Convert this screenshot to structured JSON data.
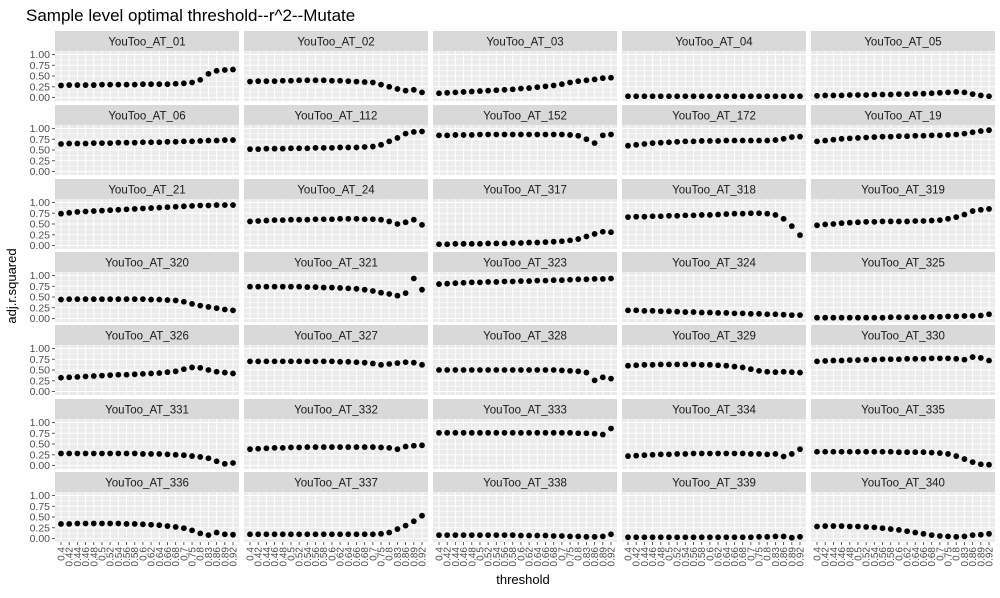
{
  "chart_data": {
    "type": "scatter",
    "title": "Sample level optimal threshold--r^2--Mutate",
    "xlabel": "threshold",
    "ylabel": "adj.r.squared",
    "ylim": [
      -0.08,
      1.08
    ],
    "y_ticks": [
      "0.00",
      "0.25",
      "0.50",
      "0.75",
      "1.00"
    ],
    "x_ticks": [
      "0.4",
      "0.42",
      "0.44",
      "0.46",
      "0.48",
      "0.5",
      "0.52",
      "0.54",
      "0.56",
      "0.58",
      "0.6",
      "0.62",
      "0.64",
      "0.66",
      "0.68",
      "0.7",
      "0.75",
      "0.8",
      "0.83",
      "0.86",
      "0.89",
      "0.92"
    ],
    "facets": [
      {
        "name": "YouToo_AT_01",
        "values": [
          0.28,
          0.29,
          0.29,
          0.29,
          0.29,
          0.3,
          0.3,
          0.3,
          0.3,
          0.3,
          0.31,
          0.31,
          0.31,
          0.31,
          0.32,
          0.33,
          0.35,
          0.41,
          0.55,
          0.62,
          0.64,
          0.65
        ]
      },
      {
        "name": "YouToo_AT_02",
        "values": [
          0.37,
          0.38,
          0.38,
          0.38,
          0.39,
          0.39,
          0.4,
          0.4,
          0.4,
          0.4,
          0.39,
          0.39,
          0.38,
          0.37,
          0.36,
          0.35,
          0.3,
          0.25,
          0.2,
          0.16,
          0.18,
          0.12
        ]
      },
      {
        "name": "YouToo_AT_03",
        "values": [
          0.1,
          0.11,
          0.12,
          0.13,
          0.14,
          0.15,
          0.16,
          0.17,
          0.18,
          0.19,
          0.21,
          0.22,
          0.24,
          0.26,
          0.28,
          0.31,
          0.35,
          0.38,
          0.4,
          0.42,
          0.45,
          0.46
        ]
      },
      {
        "name": "YouToo_AT_04",
        "values": [
          0.03,
          0.03,
          0.03,
          0.03,
          0.03,
          0.03,
          0.03,
          0.03,
          0.03,
          0.03,
          0.03,
          0.03,
          0.03,
          0.03,
          0.03,
          0.03,
          0.03,
          0.03,
          0.03,
          0.03,
          0.03,
          0.03
        ]
      },
      {
        "name": "YouToo_AT_05",
        "values": [
          0.04,
          0.05,
          0.05,
          0.05,
          0.06,
          0.06,
          0.06,
          0.07,
          0.07,
          0.07,
          0.08,
          0.08,
          0.09,
          0.09,
          0.1,
          0.11,
          0.12,
          0.13,
          0.12,
          0.08,
          0.05,
          0.03
        ]
      },
      {
        "name": "YouToo_AT_06",
        "values": [
          0.64,
          0.65,
          0.65,
          0.65,
          0.66,
          0.66,
          0.66,
          0.67,
          0.67,
          0.67,
          0.68,
          0.68,
          0.68,
          0.69,
          0.69,
          0.7,
          0.7,
          0.71,
          0.72,
          0.72,
          0.73,
          0.73
        ]
      },
      {
        "name": "YouToo_AT_112",
        "values": [
          0.52,
          0.52,
          0.53,
          0.53,
          0.53,
          0.54,
          0.54,
          0.54,
          0.55,
          0.55,
          0.55,
          0.56,
          0.56,
          0.56,
          0.57,
          0.58,
          0.62,
          0.7,
          0.78,
          0.88,
          0.92,
          0.93
        ]
      },
      {
        "name": "YouToo_AT_152",
        "values": [
          0.84,
          0.84,
          0.85,
          0.85,
          0.85,
          0.86,
          0.86,
          0.86,
          0.86,
          0.86,
          0.86,
          0.86,
          0.86,
          0.86,
          0.86,
          0.86,
          0.85,
          0.83,
          0.75,
          0.66,
          0.84,
          0.86
        ]
      },
      {
        "name": "YouToo_AT_172",
        "values": [
          0.6,
          0.62,
          0.64,
          0.66,
          0.67,
          0.68,
          0.69,
          0.7,
          0.7,
          0.71,
          0.71,
          0.71,
          0.72,
          0.72,
          0.72,
          0.72,
          0.72,
          0.72,
          0.73,
          0.76,
          0.8,
          0.81
        ]
      },
      {
        "name": "YouToo_AT_19",
        "values": [
          0.7,
          0.72,
          0.74,
          0.76,
          0.77,
          0.78,
          0.79,
          0.8,
          0.81,
          0.81,
          0.82,
          0.82,
          0.83,
          0.83,
          0.84,
          0.84,
          0.85,
          0.86,
          0.88,
          0.91,
          0.94,
          0.96
        ]
      },
      {
        "name": "YouToo_AT_21",
        "values": [
          0.74,
          0.76,
          0.78,
          0.79,
          0.8,
          0.81,
          0.82,
          0.83,
          0.84,
          0.85,
          0.86,
          0.87,
          0.88,
          0.89,
          0.9,
          0.91,
          0.92,
          0.93,
          0.93,
          0.94,
          0.94,
          0.94
        ]
      },
      {
        "name": "YouToo_AT_24",
        "values": [
          0.56,
          0.57,
          0.58,
          0.59,
          0.59,
          0.6,
          0.6,
          0.6,
          0.61,
          0.61,
          0.61,
          0.62,
          0.62,
          0.62,
          0.61,
          0.61,
          0.6,
          0.56,
          0.5,
          0.54,
          0.6,
          0.48
        ]
      },
      {
        "name": "YouToo_AT_317",
        "values": [
          0.03,
          0.03,
          0.04,
          0.04,
          0.04,
          0.04,
          0.05,
          0.05,
          0.05,
          0.06,
          0.06,
          0.07,
          0.07,
          0.08,
          0.09,
          0.1,
          0.12,
          0.15,
          0.21,
          0.27,
          0.32,
          0.31
        ]
      },
      {
        "name": "YouToo_AT_318",
        "values": [
          0.66,
          0.67,
          0.67,
          0.68,
          0.68,
          0.69,
          0.69,
          0.7,
          0.7,
          0.71,
          0.71,
          0.72,
          0.73,
          0.74,
          0.74,
          0.75,
          0.75,
          0.74,
          0.71,
          0.62,
          0.45,
          0.24
        ]
      },
      {
        "name": "YouToo_AT_319",
        "values": [
          0.47,
          0.49,
          0.5,
          0.52,
          0.53,
          0.54,
          0.55,
          0.55,
          0.56,
          0.56,
          0.56,
          0.56,
          0.57,
          0.57,
          0.58,
          0.59,
          0.62,
          0.66,
          0.72,
          0.8,
          0.83,
          0.85
        ]
      },
      {
        "name": "YouToo_AT_320",
        "values": [
          0.44,
          0.45,
          0.45,
          0.45,
          0.45,
          0.45,
          0.45,
          0.45,
          0.45,
          0.45,
          0.45,
          0.44,
          0.44,
          0.43,
          0.42,
          0.39,
          0.34,
          0.3,
          0.27,
          0.24,
          0.21,
          0.19
        ]
      },
      {
        "name": "YouToo_AT_321",
        "values": [
          0.74,
          0.74,
          0.74,
          0.74,
          0.74,
          0.74,
          0.74,
          0.73,
          0.73,
          0.72,
          0.72,
          0.71,
          0.7,
          0.69,
          0.67,
          0.64,
          0.6,
          0.57,
          0.53,
          0.59,
          0.93,
          0.67
        ]
      },
      {
        "name": "YouToo_AT_323",
        "values": [
          0.8,
          0.81,
          0.82,
          0.83,
          0.84,
          0.84,
          0.85,
          0.85,
          0.86,
          0.86,
          0.87,
          0.87,
          0.88,
          0.88,
          0.89,
          0.89,
          0.9,
          0.91,
          0.91,
          0.92,
          0.92,
          0.93
        ]
      },
      {
        "name": "YouToo_AT_324",
        "values": [
          0.19,
          0.19,
          0.18,
          0.18,
          0.17,
          0.17,
          0.16,
          0.15,
          0.15,
          0.14,
          0.14,
          0.13,
          0.13,
          0.12,
          0.12,
          0.11,
          0.11,
          0.1,
          0.1,
          0.09,
          0.08,
          0.08
        ]
      },
      {
        "name": "YouToo_AT_325",
        "values": [
          0.02,
          0.02,
          0.02,
          0.02,
          0.02,
          0.02,
          0.02,
          0.02,
          0.02,
          0.03,
          0.03,
          0.03,
          0.03,
          0.03,
          0.04,
          0.04,
          0.05,
          0.05,
          0.06,
          0.06,
          0.07,
          0.1
        ]
      },
      {
        "name": "YouToo_AT_326",
        "values": [
          0.32,
          0.33,
          0.34,
          0.35,
          0.36,
          0.37,
          0.38,
          0.39,
          0.39,
          0.4,
          0.41,
          0.42,
          0.43,
          0.45,
          0.47,
          0.52,
          0.56,
          0.55,
          0.5,
          0.46,
          0.44,
          0.42
        ]
      },
      {
        "name": "YouToo_AT_327",
        "values": [
          0.7,
          0.7,
          0.7,
          0.7,
          0.7,
          0.7,
          0.7,
          0.7,
          0.7,
          0.7,
          0.7,
          0.69,
          0.69,
          0.68,
          0.67,
          0.65,
          0.62,
          0.64,
          0.66,
          0.68,
          0.67,
          0.62
        ]
      },
      {
        "name": "YouToo_AT_328",
        "values": [
          0.5,
          0.5,
          0.5,
          0.5,
          0.5,
          0.5,
          0.5,
          0.5,
          0.5,
          0.5,
          0.5,
          0.5,
          0.5,
          0.5,
          0.5,
          0.49,
          0.48,
          0.47,
          0.44,
          0.26,
          0.33,
          0.3
        ]
      },
      {
        "name": "YouToo_AT_329",
        "values": [
          0.6,
          0.61,
          0.62,
          0.62,
          0.63,
          0.63,
          0.63,
          0.63,
          0.63,
          0.62,
          0.62,
          0.61,
          0.6,
          0.58,
          0.56,
          0.52,
          0.48,
          0.46,
          0.45,
          0.46,
          0.45,
          0.44
        ]
      },
      {
        "name": "YouToo_AT_330",
        "values": [
          0.7,
          0.71,
          0.72,
          0.72,
          0.73,
          0.73,
          0.74,
          0.74,
          0.75,
          0.75,
          0.75,
          0.76,
          0.76,
          0.76,
          0.77,
          0.77,
          0.77,
          0.76,
          0.74,
          0.8,
          0.78,
          0.72
        ]
      },
      {
        "name": "YouToo_AT_331",
        "values": [
          0.28,
          0.28,
          0.28,
          0.28,
          0.28,
          0.28,
          0.28,
          0.28,
          0.28,
          0.28,
          0.27,
          0.27,
          0.27,
          0.26,
          0.25,
          0.24,
          0.22,
          0.2,
          0.17,
          0.1,
          0.04,
          0.06
        ]
      },
      {
        "name": "YouToo_AT_332",
        "values": [
          0.38,
          0.39,
          0.4,
          0.41,
          0.41,
          0.42,
          0.42,
          0.43,
          0.43,
          0.43,
          0.43,
          0.43,
          0.43,
          0.43,
          0.43,
          0.43,
          0.42,
          0.41,
          0.38,
          0.44,
          0.46,
          0.47
        ]
      },
      {
        "name": "YouToo_AT_333",
        "values": [
          0.76,
          0.76,
          0.76,
          0.76,
          0.76,
          0.76,
          0.76,
          0.76,
          0.76,
          0.76,
          0.76,
          0.76,
          0.76,
          0.76,
          0.76,
          0.76,
          0.76,
          0.75,
          0.75,
          0.74,
          0.72,
          0.86
        ]
      },
      {
        "name": "YouToo_AT_334",
        "values": [
          0.22,
          0.23,
          0.24,
          0.25,
          0.26,
          0.26,
          0.27,
          0.27,
          0.28,
          0.28,
          0.28,
          0.28,
          0.28,
          0.28,
          0.28,
          0.27,
          0.27,
          0.26,
          0.27,
          0.21,
          0.27,
          0.38
        ]
      },
      {
        "name": "YouToo_AT_335",
        "values": [
          0.32,
          0.32,
          0.32,
          0.32,
          0.32,
          0.32,
          0.32,
          0.32,
          0.32,
          0.32,
          0.31,
          0.31,
          0.31,
          0.31,
          0.3,
          0.29,
          0.27,
          0.22,
          0.15,
          0.08,
          0.03,
          0.02
        ]
      },
      {
        "name": "YouToo_AT_336",
        "values": [
          0.34,
          0.34,
          0.35,
          0.35,
          0.35,
          0.35,
          0.35,
          0.35,
          0.34,
          0.34,
          0.33,
          0.32,
          0.31,
          0.29,
          0.27,
          0.24,
          0.19,
          0.12,
          0.08,
          0.14,
          0.1,
          0.09
        ]
      },
      {
        "name": "YouToo_AT_337",
        "values": [
          0.1,
          0.1,
          0.1,
          0.1,
          0.1,
          0.1,
          0.1,
          0.1,
          0.1,
          0.1,
          0.1,
          0.1,
          0.1,
          0.1,
          0.1,
          0.1,
          0.11,
          0.14,
          0.22,
          0.3,
          0.4,
          0.53
        ]
      },
      {
        "name": "YouToo_AT_338",
        "values": [
          0.08,
          0.08,
          0.08,
          0.08,
          0.08,
          0.08,
          0.08,
          0.08,
          0.08,
          0.08,
          0.07,
          0.07,
          0.07,
          0.07,
          0.06,
          0.06,
          0.05,
          0.05,
          0.04,
          0.04,
          0.05,
          0.1
        ]
      },
      {
        "name": "YouToo_AT_339",
        "values": [
          0.03,
          0.03,
          0.03,
          0.03,
          0.03,
          0.03,
          0.03,
          0.03,
          0.03,
          0.03,
          0.03,
          0.03,
          0.03,
          0.03,
          0.03,
          0.03,
          0.04,
          0.04,
          0.05,
          0.05,
          0.02,
          0.04
        ]
      },
      {
        "name": "YouToo_AT_340",
        "values": [
          0.28,
          0.29,
          0.29,
          0.29,
          0.28,
          0.28,
          0.27,
          0.26,
          0.24,
          0.22,
          0.2,
          0.17,
          0.14,
          0.11,
          0.08,
          0.06,
          0.05,
          0.04,
          0.05,
          0.08,
          0.09,
          0.11
        ]
      }
    ],
    "grid": true,
    "ncol": 5,
    "nrow": 7,
    "colors": {
      "panel_bg": "#ebebeb",
      "strip_bg": "#d9d9d9",
      "point": "#000000",
      "grid": "#ffffff",
      "axis_text": "#4d4d4d"
    }
  }
}
